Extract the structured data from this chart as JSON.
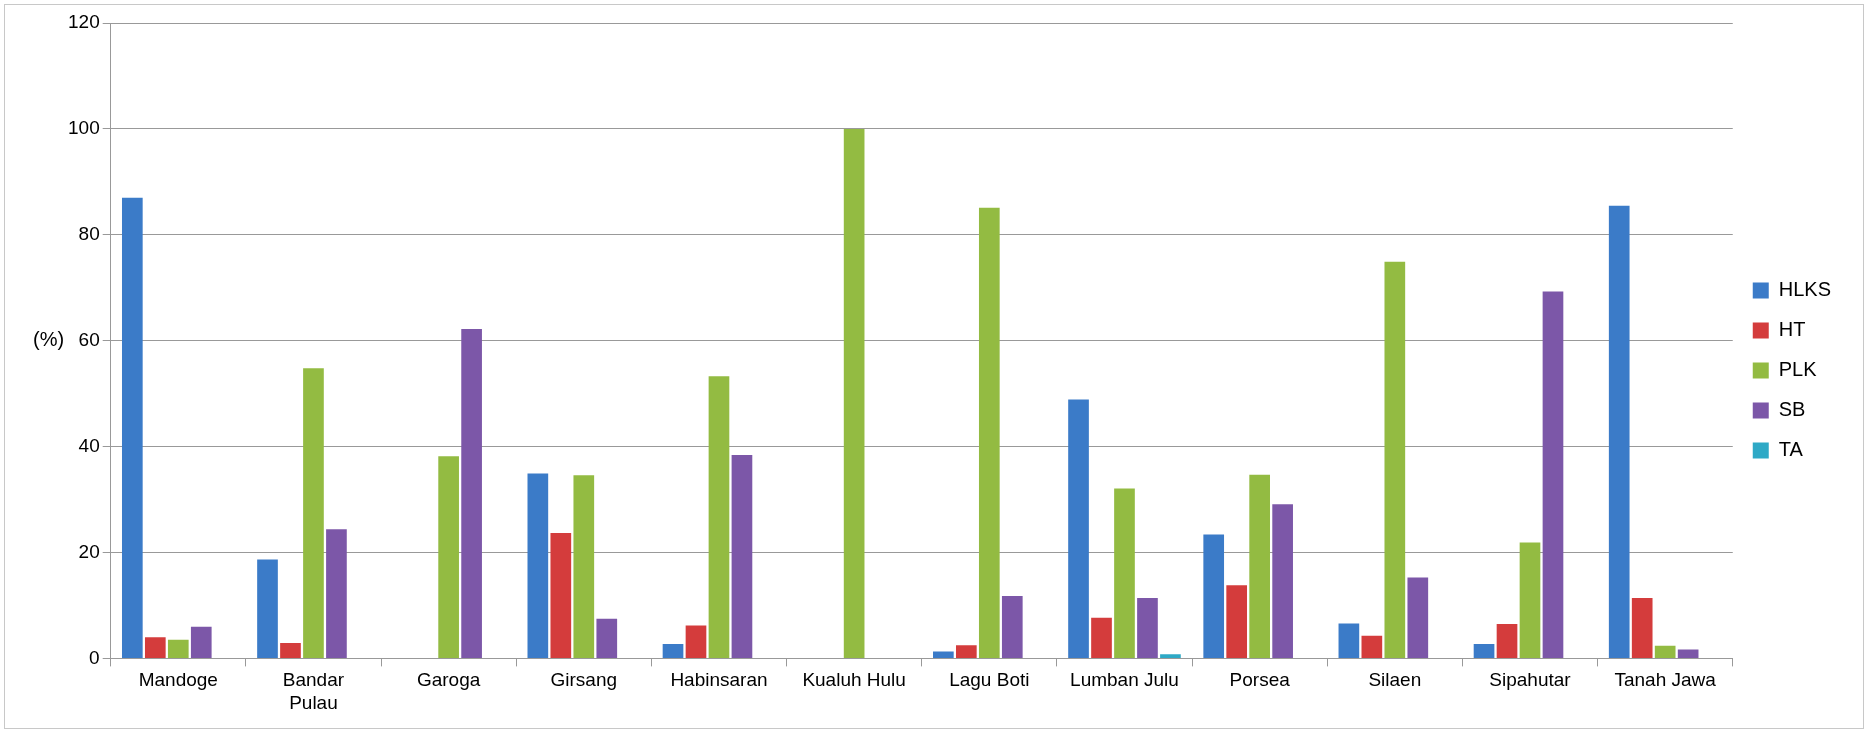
{
  "chart_data": {
    "type": "bar",
    "ylabel": "(%)",
    "categories": [
      "Mandoge",
      "Bandar Pulau",
      "Garoga",
      "Girsang",
      "Habinsaran",
      "Kualuh Hulu",
      "Lagu Boti",
      "Lumban Julu",
      "Porsea",
      "Silaen",
      "Sipahutar",
      "Tanah Jawa"
    ],
    "series": [
      {
        "name": "HLKS",
        "color": "#3b7bc8",
        "values": [
          87,
          18.7,
          0,
          34.9,
          2.7,
          0,
          1.3,
          48.9,
          23.4,
          6.6,
          2.7,
          85.5
        ]
      },
      {
        "name": "HT",
        "color": "#d43c3c",
        "values": [
          4,
          2.9,
          0,
          23.7,
          6.2,
          0,
          2.5,
          7.7,
          13.8,
          4.3,
          6.5,
          11.4
        ]
      },
      {
        "name": "PLK",
        "color": "#93bb42",
        "values": [
          3.5,
          54.8,
          38.2,
          34.6,
          53.3,
          100,
          85.1,
          32.1,
          34.7,
          74.9,
          21.9,
          2.4
        ]
      },
      {
        "name": "SB",
        "color": "#7c57a8",
        "values": [
          6,
          24.4,
          62.2,
          7.5,
          38.4,
          0,
          11.8,
          11.4,
          29.1,
          15.3,
          69.3,
          1.7
        ]
      },
      {
        "name": "TA",
        "color": "#2ea9c6",
        "values": [
          0,
          0,
          0,
          0,
          0,
          0,
          0,
          0.8,
          0,
          0,
          0,
          0
        ]
      }
    ],
    "ylim": [
      0,
      120
    ],
    "yticks": [
      0,
      20,
      40,
      60,
      80,
      100,
      120
    ],
    "grid": "y",
    "legend": "right"
  }
}
